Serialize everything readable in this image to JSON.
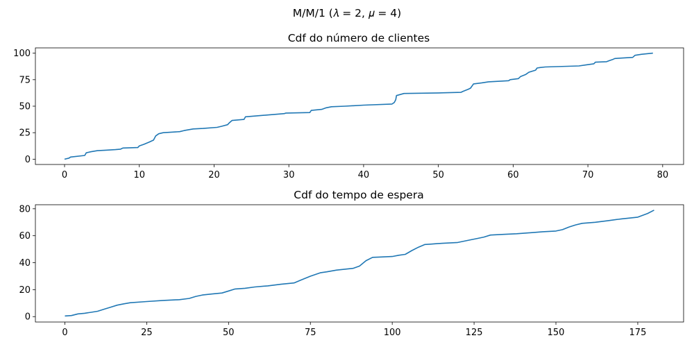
{
  "figure": {
    "suptitle": "M/M/1 (𝜆 = 2, 𝜇 = 4)"
  },
  "chart_data": [
    {
      "type": "line",
      "title": "Cdf do número de clientes",
      "xlabel": "",
      "ylabel": "",
      "xlim": [
        -3.9,
        82.8
      ],
      "ylim": [
        -5,
        105
      ],
      "xticks": [
        0,
        10,
        20,
        30,
        40,
        50,
        60,
        70,
        80
      ],
      "yticks": [
        0,
        25,
        50,
        75,
        100
      ],
      "color": "#1f77b4",
      "grid": false,
      "series": [
        {
          "x": [
            0,
            0.6,
            0.8,
            2.7,
            2.9,
            3.5,
            4.4,
            5.5,
            6.8,
            7.5,
            7.8,
            9.8,
            10.0,
            10.6,
            11.3,
            11.9,
            12.2,
            12.6,
            13.2,
            15.4,
            16.0,
            16.8,
            17.2,
            18.5,
            20.4,
            21.0,
            21.8,
            22.0,
            22.4,
            24.0,
            24.2,
            29.4,
            29.6,
            32.8,
            33.0,
            34.4,
            35.0,
            35.7,
            37.5,
            40.0,
            43.8,
            44.1,
            44.3,
            44.4,
            45.4,
            50.0,
            53.0,
            53.3,
            54.0,
            54.3,
            54.7,
            55.8,
            56.7,
            59.4,
            59.6,
            60.7,
            61.0,
            61.7,
            62.1,
            63.0,
            63.2,
            63.6,
            64.3,
            68.8,
            69.8,
            70.8,
            71.0,
            72.5,
            72.9,
            73.3,
            73.6,
            76.0,
            76.3,
            77.2,
            78.7
          ],
          "y": [
            0,
            1,
            2,
            3.5,
            6,
            7,
            8,
            8.5,
            9,
            9.5,
            10.5,
            11,
            12.5,
            14,
            16,
            18,
            22,
            24,
            25,
            26,
            27,
            28,
            28.5,
            29,
            30,
            31,
            32.5,
            34,
            36.5,
            37.5,
            40,
            43,
            43.5,
            44,
            46,
            47,
            48.5,
            49.5,
            50,
            51,
            52,
            53.5,
            56,
            60,
            62,
            62.5,
            63,
            64,
            66,
            67,
            71,
            72,
            73,
            74,
            75,
            76,
            78,
            80,
            82,
            84,
            86,
            86.5,
            87,
            88,
            89,
            90,
            91.5,
            92,
            93,
            94,
            95,
            96,
            98,
            99,
            100
          ]
        }
      ]
    },
    {
      "type": "line",
      "title": "Cdf do tempo de espera",
      "xlabel": "",
      "ylabel": "",
      "xlim": [
        -9,
        189
      ],
      "ylim": [
        -4,
        83
      ],
      "xticks": [
        0,
        25,
        50,
        75,
        100,
        125,
        150,
        175
      ],
      "yticks": [
        0,
        20,
        40,
        60,
        80
      ],
      "color": "#1f77b4",
      "grid": false,
      "series": [
        {
          "x": [
            0,
            2,
            4,
            6,
            8,
            10,
            12,
            14,
            16,
            18,
            20,
            25,
            30,
            35,
            38,
            40,
            42,
            45,
            48,
            50,
            52,
            55,
            58,
            62,
            66,
            70,
            72,
            75,
            78,
            80,
            83,
            86,
            88,
            90,
            92,
            94,
            96,
            100,
            102,
            104,
            106,
            108,
            110,
            112,
            114,
            120,
            124,
            126,
            128,
            130,
            134,
            138,
            142,
            146,
            150,
            152,
            154,
            156,
            158,
            162,
            166,
            170,
            175,
            178,
            180
          ],
          "y": [
            0.5,
            0.8,
            2,
            2.5,
            3.2,
            4,
            5.5,
            7,
            8.5,
            9.5,
            10.3,
            11.2,
            12,
            12.6,
            13.5,
            15,
            16,
            16.8,
            17.5,
            19,
            20.5,
            21,
            22,
            22.8,
            24,
            25,
            27,
            30,
            32.5,
            33.2,
            34.5,
            35.3,
            35.8,
            37.5,
            41.5,
            44,
            44.2,
            44.6,
            45.5,
            46.2,
            49,
            51.5,
            53.5,
            53.8,
            54.2,
            55,
            57,
            58,
            59,
            60.5,
            61,
            61.5,
            62.2,
            63,
            63.5,
            64.5,
            66.5,
            68,
            69.2,
            70,
            71.2,
            72.5,
            73.8,
            76.5,
            79
          ]
        }
      ]
    }
  ]
}
